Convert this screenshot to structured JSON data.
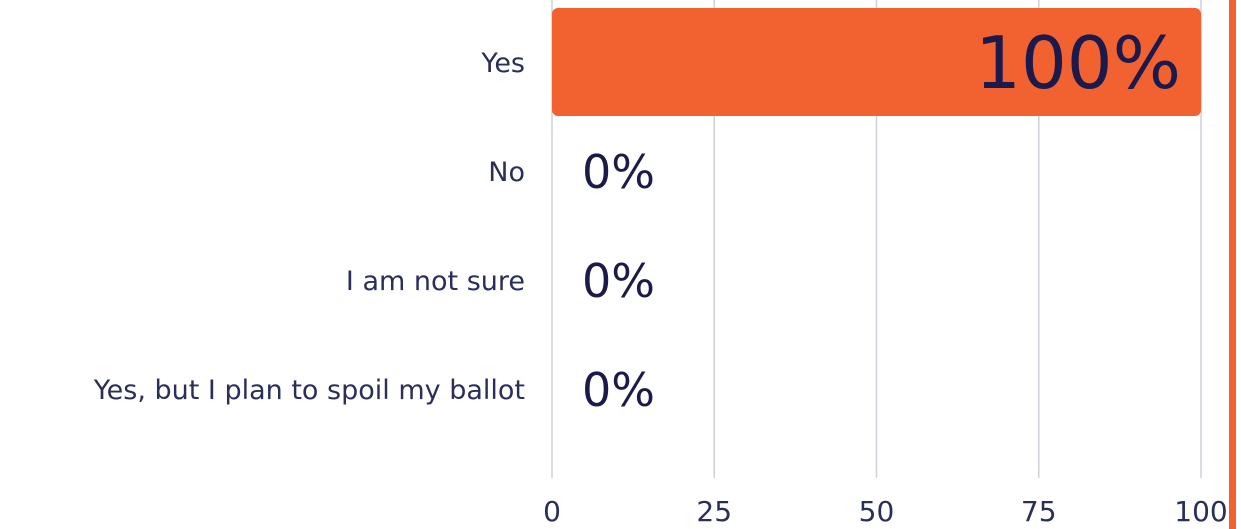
{
  "chart_data": {
    "type": "bar",
    "orientation": "horizontal",
    "categories": [
      "Yes",
      "No",
      "I am not sure",
      "Yes, but I plan to spoil my ballot"
    ],
    "values": [
      100,
      0,
      0,
      0
    ],
    "value_labels": [
      "100%",
      "0%",
      "0%",
      "0%"
    ],
    "xlim": [
      0,
      100
    ],
    "xticks": [
      "0",
      "25",
      "50",
      "75",
      "100"
    ],
    "title": "",
    "xlabel": "",
    "ylabel": "",
    "grid": true,
    "bar_color": "#f26130",
    "grid_color": "#cfd0da",
    "text_color": "#2a2f5a",
    "accent_edge_color": "#f26130"
  }
}
